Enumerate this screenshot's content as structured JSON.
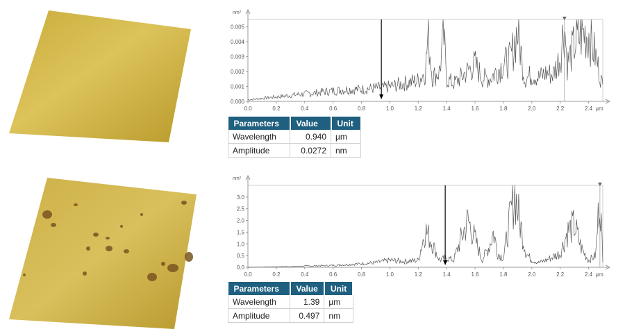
{
  "surfaces": [
    {
      "name": "smooth-gold-surface"
    },
    {
      "name": "pitted-gold-surface"
    }
  ],
  "chart_data": [
    {
      "type": "line",
      "x_unit": "µm",
      "y_unit": "nm²",
      "xlim": [
        0.0,
        2.5
      ],
      "ylim": [
        0.0,
        0.0055
      ],
      "x_ticks": [
        "0.0",
        "0.2",
        "0.4",
        "0.6",
        "0.8",
        "1.0",
        "1.2",
        "1.4",
        "1.6",
        "1.8",
        "2.0",
        "2.2",
        "2.4"
      ],
      "y_ticks": [
        "0.000",
        "0.001",
        "0.002",
        "0.003",
        "0.004",
        "0.005"
      ],
      "x_tick_values": [
        0.0,
        0.2,
        0.4,
        0.6,
        0.8,
        1.0,
        1.2,
        1.4,
        1.6,
        1.8,
        2.0,
        2.2,
        2.4
      ],
      "y_tick_values": [
        0.0,
        0.001,
        0.002,
        0.003,
        0.004,
        0.005
      ],
      "marker_x": 0.94,
      "cursor_x": 2.23,
      "series": [
        {
          "x": [
            0.0,
            0.1,
            0.2,
            0.3,
            0.4,
            0.5,
            0.6,
            0.7,
            0.8,
            0.9,
            0.95,
            1.0,
            1.1,
            1.2,
            1.25,
            1.27,
            1.3,
            1.35,
            1.38,
            1.4,
            1.45,
            1.5,
            1.6,
            1.65,
            1.7,
            1.8,
            1.85,
            1.9,
            1.95,
            2.0,
            2.05,
            2.1,
            2.15,
            2.2,
            2.23,
            2.25,
            2.3,
            2.35,
            2.4,
            2.45,
            2.5
          ],
          "y": [
            0.0001,
            0.0002,
            0.0003,
            0.0004,
            0.0005,
            0.0006,
            0.0007,
            0.0008,
            0.0008,
            0.0009,
            0.0009,
            0.001,
            0.0012,
            0.0014,
            0.002,
            0.0045,
            0.0016,
            0.002,
            0.0043,
            0.0015,
            0.0012,
            0.0016,
            0.0025,
            0.0016,
            0.0015,
            0.0025,
            0.0028,
            0.0048,
            0.0015,
            0.0018,
            0.0016,
            0.0019,
            0.0018,
            0.003,
            0.0052,
            0.0025,
            0.0038,
            0.0045,
            0.0046,
            0.003,
            0.001
          ]
        }
      ],
      "table": {
        "headers": [
          "Parameters",
          "Value",
          "Unit"
        ],
        "rows": [
          [
            "Wavelength",
            "0.940",
            "µm"
          ],
          [
            "Amplitude",
            "0.0272",
            "nm"
          ]
        ]
      }
    },
    {
      "type": "line",
      "x_unit": "µm",
      "y_unit": "nm²",
      "xlim": [
        0.0,
        2.5
      ],
      "ylim": [
        0.0,
        3.5
      ],
      "x_ticks": [
        "0.0",
        "0.2",
        "0.4",
        "0.6",
        "0.8",
        "1.0",
        "1.2",
        "1.4",
        "1.6",
        "1.8",
        "2.0",
        "2.2",
        "2.4"
      ],
      "y_ticks": [
        "0.0",
        "0.5",
        "1.0",
        "1.5",
        "2.0",
        "2.5",
        "3.0"
      ],
      "x_tick_values": [
        0.0,
        0.2,
        0.4,
        0.6,
        0.8,
        1.0,
        1.2,
        1.4,
        1.6,
        1.8,
        2.0,
        2.2,
        2.4
      ],
      "y_tick_values": [
        0.0,
        0.5,
        1.0,
        1.5,
        2.0,
        2.5,
        3.0
      ],
      "marker_x": 1.39,
      "cursor_x": 2.48,
      "series": [
        {
          "x": [
            0.0,
            0.2,
            0.4,
            0.6,
            0.8,
            0.9,
            1.0,
            1.1,
            1.2,
            1.25,
            1.3,
            1.35,
            1.4,
            1.45,
            1.5,
            1.55,
            1.6,
            1.65,
            1.7,
            1.73,
            1.76,
            1.8,
            1.85,
            1.88,
            1.92,
            1.96,
            2.0,
            2.05,
            2.1,
            2.2,
            2.25,
            2.3,
            2.35,
            2.4,
            2.45,
            2.48,
            2.5
          ],
          "y": [
            0.0,
            0.02,
            0.05,
            0.08,
            0.15,
            0.2,
            0.3,
            0.25,
            0.3,
            1.6,
            1.0,
            0.3,
            0.4,
            0.3,
            1.2,
            2.0,
            1.2,
            0.3,
            0.9,
            1.5,
            0.6,
            0.4,
            2.2,
            3.2,
            1.8,
            0.6,
            0.3,
            0.2,
            0.3,
            0.6,
            1.5,
            1.8,
            0.8,
            0.3,
            0.5,
            3.3,
            0.2
          ]
        }
      ],
      "table": {
        "headers": [
          "Parameters",
          "Value",
          "Unit"
        ],
        "rows": [
          [
            "Wavelength",
            "1.39",
            "µm"
          ],
          [
            "Amplitude",
            "0.497",
            "nm"
          ]
        ]
      }
    }
  ]
}
